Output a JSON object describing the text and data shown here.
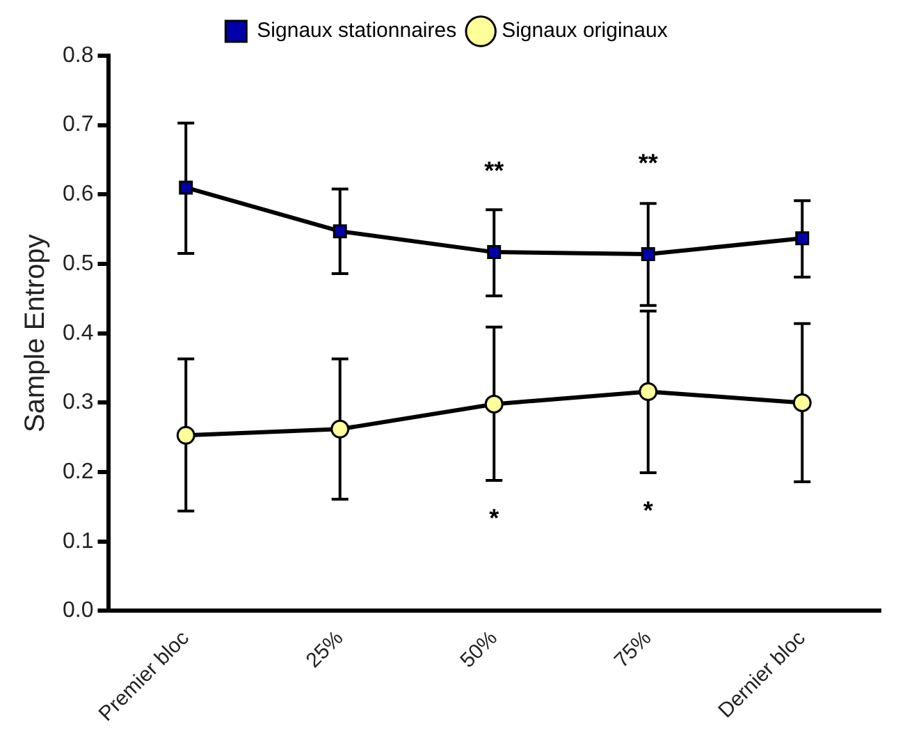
{
  "chart_data": {
    "type": "line",
    "ylabel": "Sample Entropy",
    "categories": [
      "Premier bloc",
      "25%",
      "50%",
      "75%",
      "Dernier bloc"
    ],
    "series": [
      {
        "name": "Signaux stationnaires",
        "color": "#0000aa",
        "marker": "square",
        "values": [
          0.61,
          0.547,
          0.517,
          0.514,
          0.537
        ],
        "errors": [
          [
            0.515,
            0.703
          ],
          [
            0.486,
            0.608
          ],
          [
            0.454,
            0.578
          ],
          [
            0.44,
            0.587
          ],
          [
            0.481,
            0.591
          ]
        ]
      },
      {
        "name": "Signaux originaux",
        "color": "#ffff99",
        "marker": "circle",
        "values": [
          0.253,
          0.262,
          0.298,
          0.316,
          0.3
        ],
        "errors": [
          [
            0.144,
            0.363
          ],
          [
            0.161,
            0.363
          ],
          [
            0.188,
            0.409
          ],
          [
            0.199,
            0.432
          ],
          [
            0.186,
            0.414
          ]
        ]
      }
    ],
    "annotations": [
      "**",
      "**",
      "*",
      "*"
    ],
    "ylim": [
      0,
      0.8
    ],
    "yticks": [
      {
        "value": 0,
        "label": "0.0"
      },
      0.1,
      0.2,
      0.3,
      0.4,
      0.5,
      0.6,
      0.7,
      0.8
    ],
    "grid": false,
    "legend": "top",
    "line_style": "solid"
  }
}
